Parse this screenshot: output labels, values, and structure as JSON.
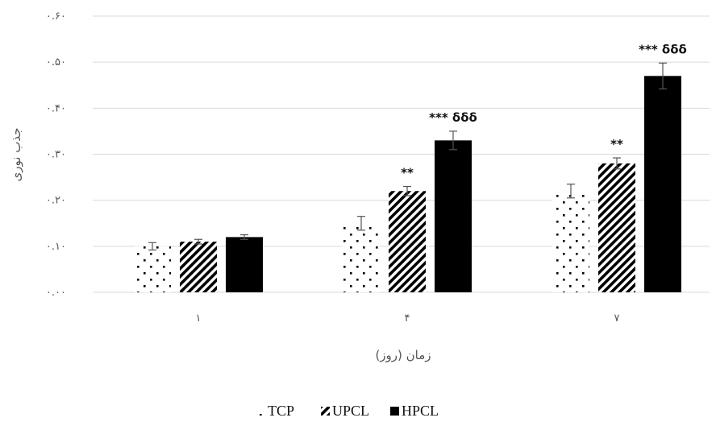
{
  "chart_data": {
    "type": "bar",
    "xlabel": "زمان (روز)",
    "ylabel": "جذب نوری",
    "ylim": [
      0,
      0.6
    ],
    "yticks": [
      0,
      0.1,
      0.2,
      0.3,
      0.4,
      0.5,
      0.6
    ],
    "ytick_labels": [
      "۰.۰۰",
      "۰.۱۰",
      "۰.۲۰",
      "۰.۳۰",
      "۰.۴۰",
      "۰.۵۰",
      "۰.۶۰"
    ],
    "categories": [
      "۱",
      "۴",
      "۷"
    ],
    "grid": true,
    "legend_position": "bottom",
    "series": [
      {
        "name": "TCP",
        "pattern": "dots",
        "color": "#000000",
        "values": [
          0.1,
          0.15,
          0.22
        ],
        "errors": [
          0.008,
          0.015,
          0.015
        ]
      },
      {
        "name": "UPCL",
        "pattern": "diagonal-stripes",
        "color": "#000000",
        "values": [
          0.11,
          0.22,
          0.28
        ],
        "errors": [
          0.005,
          0.01,
          0.012
        ]
      },
      {
        "name": "HPCL",
        "pattern": "solid",
        "color": "#000000",
        "values": [
          0.12,
          0.33,
          0.47
        ],
        "errors": [
          0.005,
          0.02,
          0.028
        ]
      }
    ],
    "annotations": [
      {
        "category": "۴",
        "series": "UPCL",
        "text": "**"
      },
      {
        "category": "۴",
        "series": "HPCL",
        "text": "*** δδδ"
      },
      {
        "category": "۷",
        "series": "UPCL",
        "text": "**"
      },
      {
        "category": "۷",
        "series": "HPCL",
        "text": "*** δδδ"
      }
    ]
  }
}
